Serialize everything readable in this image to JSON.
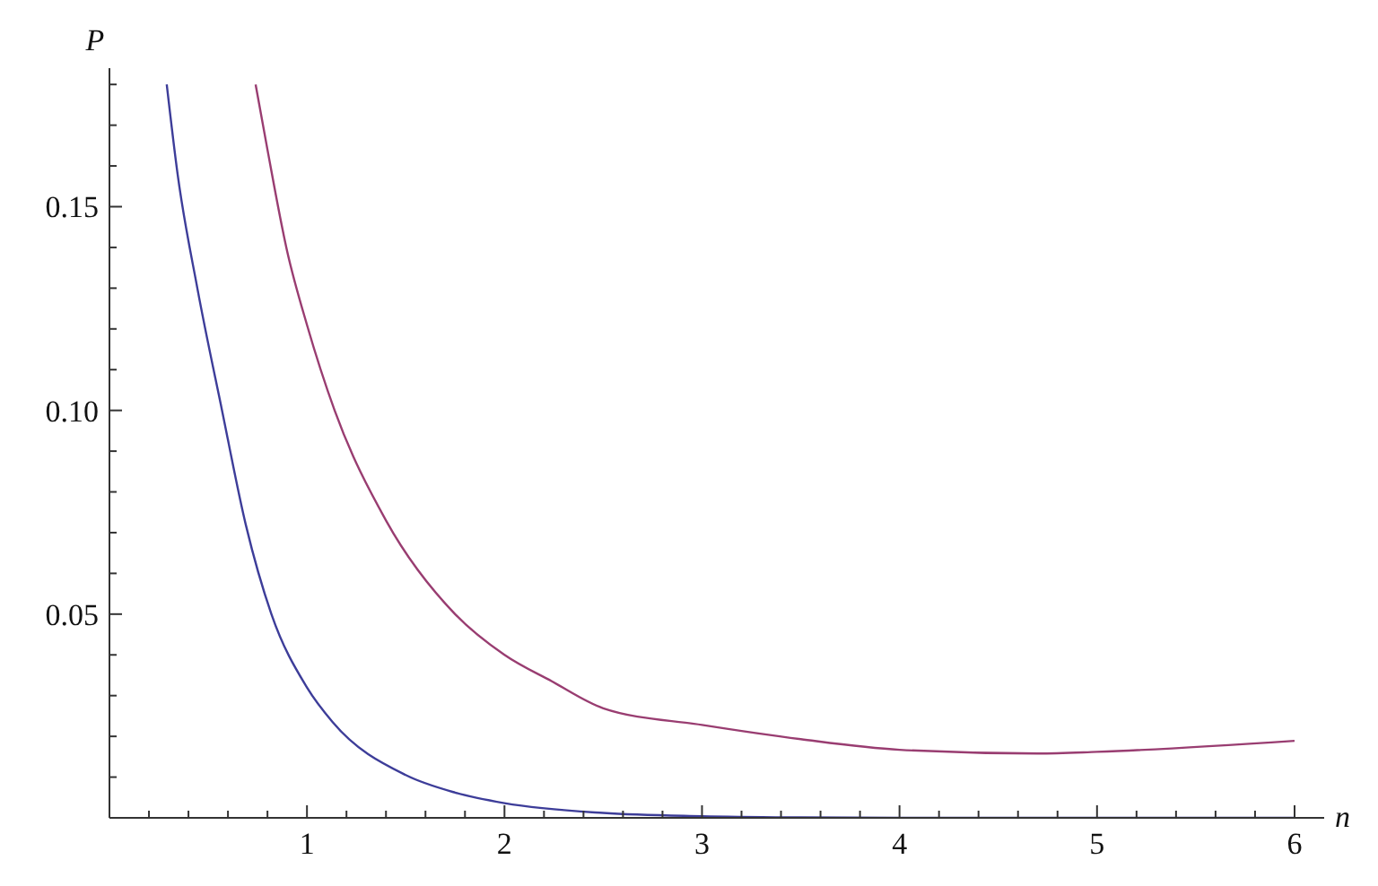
{
  "chart_data": {
    "type": "line",
    "xlabel": "n",
    "ylabel": "P",
    "xlim": [
      0,
      6.15
    ],
    "ylim": [
      0,
      0.184
    ],
    "xticks": [
      {
        "value": 0.2,
        "label": null
      },
      {
        "value": 0.4,
        "label": null
      },
      {
        "value": 0.6,
        "label": null
      },
      {
        "value": 0.8,
        "label": null
      },
      1,
      {
        "value": 1.2,
        "label": null
      },
      {
        "value": 1.4,
        "label": null
      },
      {
        "value": 1.6,
        "label": null
      },
      {
        "value": 1.8,
        "label": null
      },
      2,
      {
        "value": 2.2,
        "label": null
      },
      {
        "value": 2.4,
        "label": null
      },
      {
        "value": 2.6,
        "label": null
      },
      {
        "value": 2.8,
        "label": null
      },
      3,
      {
        "value": 3.2,
        "label": null
      },
      {
        "value": 3.4,
        "label": null
      },
      {
        "value": 3.6,
        "label": null
      },
      {
        "value": 3.8,
        "label": null
      },
      4,
      {
        "value": 4.2,
        "label": null
      },
      {
        "value": 4.4,
        "label": null
      },
      {
        "value": 4.6,
        "label": null
      },
      {
        "value": 4.8,
        "label": null
      },
      5,
      {
        "value": 5.2,
        "label": null
      },
      {
        "value": 5.4,
        "label": null
      },
      {
        "value": 5.6,
        "label": null
      },
      {
        "value": 5.8,
        "label": null
      },
      6
    ],
    "yticks": [
      {
        "value": 0.01,
        "label": null
      },
      {
        "value": 0.02,
        "label": null
      },
      {
        "value": 0.03,
        "label": null
      },
      {
        "value": 0.04,
        "label": null
      },
      {
        "value": 0.05,
        "label": "0.05"
      },
      {
        "value": 0.06,
        "label": null
      },
      {
        "value": 0.07,
        "label": null
      },
      {
        "value": 0.08,
        "label": null
      },
      {
        "value": 0.09,
        "label": null
      },
      {
        "value": 0.1,
        "label": "0.10"
      },
      {
        "value": 0.11,
        "label": null
      },
      {
        "value": 0.12,
        "label": null
      },
      {
        "value": 0.13,
        "label": null
      },
      {
        "value": 0.14,
        "label": null
      },
      {
        "value": 0.15,
        "label": "0.15"
      },
      {
        "value": 0.16,
        "label": null
      },
      {
        "value": 0.17,
        "label": null
      },
      {
        "value": 0.18,
        "label": null
      }
    ],
    "marker": "none",
    "line_style": "solid",
    "series": [
      {
        "color": "#3d3d99",
        "x": [
          0.29,
          0.345,
          0.445,
          0.57,
          0.69,
          0.82,
          1.0,
          1.13,
          1.5,
          1.75,
          2.0,
          2.5,
          3.0,
          3.5,
          4.0,
          5.0,
          6.0
        ],
        "values": [
          0.18,
          0.158,
          0.13,
          0.1,
          0.072,
          0.05,
          0.032,
          0.0235,
          0.0105,
          0.0062,
          0.0036,
          0.0012,
          0.0004,
          0.0001,
          0,
          0,
          0
        ]
      },
      {
        "color": "#993d71",
        "x": [
          0.74,
          0.8,
          0.9,
          1.0,
          1.14,
          1.4,
          1.75,
          2.0,
          2.24,
          2.5,
          3.0,
          3.5,
          4.0,
          4.7,
          5.0,
          6.0
        ],
        "values": [
          0.18,
          0.164,
          0.139,
          0.121,
          0.1,
          0.073,
          0.05,
          0.04,
          0.0335,
          0.0269,
          0.0228,
          0.0193,
          0.0167,
          0.0158,
          0.0162,
          0.0189
        ]
      }
    ]
  }
}
